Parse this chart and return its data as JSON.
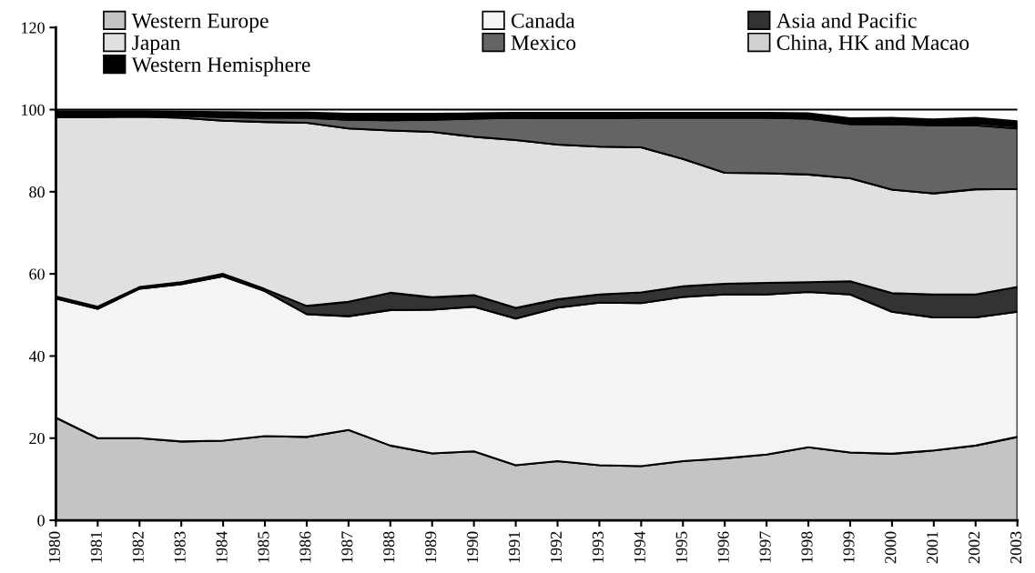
{
  "chart_data": {
    "type": "area",
    "stacked": true,
    "x": [
      1980,
      1981,
      1982,
      1983,
      1984,
      1985,
      1986,
      1987,
      1988,
      1989,
      1990,
      1991,
      1992,
      1993,
      1994,
      1995,
      1996,
      1997,
      1998,
      1999,
      2000,
      2001,
      2002,
      2003
    ],
    "series": [
      {
        "name": "Western Europe",
        "color": "#c4c4c4",
        "values": [
          25,
          20,
          20,
          19.2,
          19.4,
          20.5,
          20.3,
          22,
          18.2,
          16.3,
          16.8,
          13.4,
          14.4,
          13.4,
          13.2,
          14.4,
          15.1,
          16,
          17.8,
          16.5,
          16.2,
          17,
          18.2,
          20.3
        ]
      },
      {
        "name": "Canada",
        "color": "#f4f4f4",
        "values": [
          29,
          31.5,
          36.4,
          38.3,
          40,
          35.3,
          29.9,
          27.7,
          33,
          35,
          35.2,
          35.7,
          37.4,
          39.6,
          39.7,
          40,
          39.9,
          39,
          37.8,
          38.5,
          34.6,
          32.4,
          31.2,
          30.5
        ]
      },
      {
        "name": "Asia and Pacific",
        "color": "#333333",
        "values": [
          0.5,
          0.5,
          0.4,
          0.5,
          0.6,
          0.5,
          2,
          3.5,
          4.2,
          3,
          2.8,
          2.6,
          2,
          2,
          2.6,
          2.6,
          2.6,
          2.8,
          2.4,
          3.2,
          4.5,
          5.6,
          5.6,
          6
        ]
      },
      {
        "name": "Japan",
        "color": "#e0e0e0",
        "values": [
          43.7,
          46.2,
          41.5,
          40,
          37.3,
          40.7,
          44.6,
          42.2,
          39.5,
          40.3,
          38.6,
          40.9,
          37.7,
          36,
          35.3,
          31,
          27,
          26.7,
          26.2,
          25.1,
          25.2,
          24.6,
          25.6,
          23.9
        ]
      },
      {
        "name": "Mexico",
        "color": "#646464",
        "values": [
          0.3,
          0.3,
          0.3,
          0.5,
          0.9,
          1,
          1.2,
          2.1,
          2.5,
          2.9,
          4.4,
          5.4,
          6.4,
          6.9,
          7.2,
          10,
          13.4,
          13.5,
          13.6,
          13.2,
          15.9,
          16.6,
          15.6,
          14.7
        ]
      },
      {
        "name": "China, HK and Macao",
        "color": "#d0d0d0",
        "values": [
          0.3,
          0.3,
          0.3,
          0.3,
          0.3,
          0.3,
          0.3,
          0.3,
          0.3,
          0.3,
          0.3,
          0.3,
          0.3,
          0.3,
          0.3,
          0.3,
          0.3,
          0.3,
          0.3,
          0.4,
          0.4,
          0.4,
          0.5,
          0.5
        ]
      },
      {
        "name": "Western Hemisphere",
        "color": "#000000",
        "values": [
          0.8,
          0.8,
          0.7,
          0.7,
          0.9,
          1,
          1,
          1.2,
          1.3,
          1.2,
          1,
          0.9,
          1,
          1,
          0.9,
          0.9,
          0.9,
          0.9,
          1,
          1,
          1.2,
          1,
          1.3,
          1.3
        ]
      }
    ],
    "xlim": [
      1980,
      2003
    ],
    "xticks": [
      1980,
      1981,
      1982,
      1983,
      1984,
      1985,
      1986,
      1987,
      1988,
      1989,
      1990,
      1991,
      1992,
      1993,
      1994,
      1995,
      1996,
      1997,
      1998,
      1999,
      2000,
      2001,
      2002,
      2003
    ],
    "ylim": [
      0,
      120
    ],
    "yticks": [
      0,
      20,
      40,
      60,
      80,
      100,
      120
    ],
    "ref_lines": [
      {
        "axis": "y",
        "value": 100,
        "label": null,
        "color": "#000000"
      }
    ],
    "legend": "top",
    "grid": false
  }
}
